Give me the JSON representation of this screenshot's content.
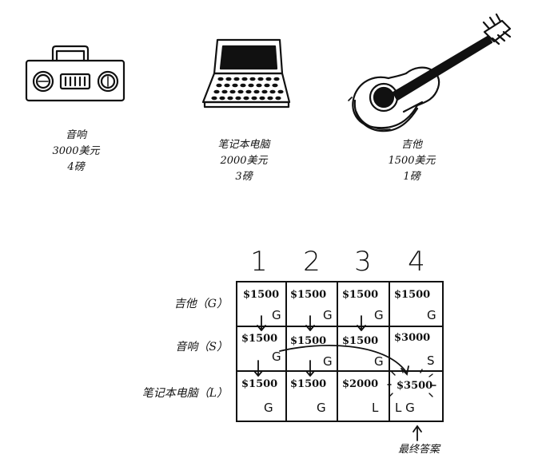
{
  "items": [
    {
      "name": "音响",
      "price": "3000美元",
      "weight": "4磅",
      "icon": "boombox-icon"
    },
    {
      "name": "笔记本电脑",
      "price": "2000美元",
      "weight": "3磅",
      "icon": "laptop-icon"
    },
    {
      "name": "吉他",
      "price": "1500美元",
      "weight": "1磅",
      "icon": "guitar-icon"
    }
  ],
  "grid": {
    "columns": [
      "1",
      "2",
      "3",
      "4"
    ],
    "rows": [
      {
        "label": "吉他（G）",
        "cells": [
          {
            "value": "$1500",
            "items": "G"
          },
          {
            "value": "$1500",
            "items": "G"
          },
          {
            "value": "$1500",
            "items": "G"
          },
          {
            "value": "$1500",
            "items": "G"
          }
        ]
      },
      {
        "label": "音响（S）",
        "cells": [
          {
            "value": "$1500",
            "items": "G"
          },
          {
            "value": "$1500",
            "items": "G"
          },
          {
            "value": "$1500",
            "items": "G"
          },
          {
            "value": "$3000",
            "items": "S"
          }
        ]
      },
      {
        "label": "笔记本电脑（L）",
        "cells": [
          {
            "value": "$1500",
            "items": "G"
          },
          {
            "value": "$1500",
            "items": "G"
          },
          {
            "value": "$2000",
            "items": "L"
          },
          {
            "value": "$3500",
            "items": "L G"
          }
        ]
      }
    ],
    "final_answer_label": "最终答案"
  }
}
